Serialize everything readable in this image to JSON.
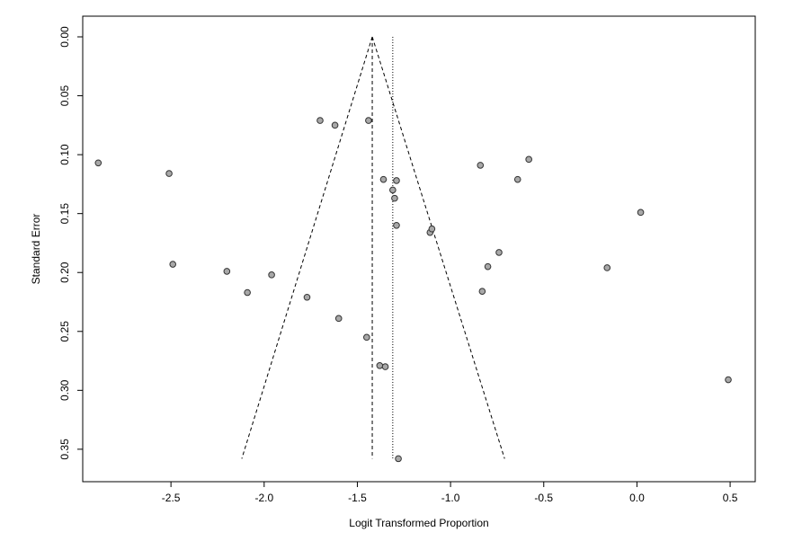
{
  "chart_data": {
    "type": "scatter",
    "title": "",
    "xlabel": "Logit Transformed Proportion",
    "ylabel": "Standard Error",
    "xlim": [
      -2.93,
      0.6
    ],
    "ylim": [
      0,
      0.36
    ],
    "y_reversed": true,
    "grid": false,
    "legend": "none",
    "x_ticks": [
      -2.5,
      -2.0,
      -1.5,
      -1.0,
      -0.5,
      0.0,
      0.5
    ],
    "x_tick_labels": [
      "-2.5",
      "-2.0",
      "-1.5",
      "-1.0",
      "-0.5",
      "0.0",
      "0.5"
    ],
    "y_ticks": [
      0.0,
      0.05,
      0.1,
      0.15,
      0.2,
      0.25,
      0.3,
      0.35
    ],
    "y_tick_labels": [
      "0.00",
      "0.05",
      "0.10",
      "0.15",
      "0.20",
      "0.25",
      "0.30",
      "0.35"
    ],
    "pooled_estimate_fixed": -1.42,
    "pooled_estimate_random": -1.31,
    "funnel_bottom_se": 0.358,
    "funnel_left_bottom_x": -2.12,
    "funnel_right_bottom_x": -0.71,
    "point_fill": "#a8a8a8",
    "point_stroke": "#333333",
    "points": [
      {
        "x": -2.89,
        "y": 0.107
      },
      {
        "x": -2.51,
        "y": 0.116
      },
      {
        "x": -2.49,
        "y": 0.193
      },
      {
        "x": -2.2,
        "y": 0.199
      },
      {
        "x": -2.09,
        "y": 0.217
      },
      {
        "x": -1.96,
        "y": 0.202
      },
      {
        "x": -1.77,
        "y": 0.221
      },
      {
        "x": -1.7,
        "y": 0.071
      },
      {
        "x": -1.62,
        "y": 0.075
      },
      {
        "x": -1.6,
        "y": 0.239
      },
      {
        "x": -1.44,
        "y": 0.071
      },
      {
        "x": -1.45,
        "y": 0.255
      },
      {
        "x": -1.38,
        "y": 0.279
      },
      {
        "x": -1.35,
        "y": 0.28
      },
      {
        "x": -1.36,
        "y": 0.121
      },
      {
        "x": -1.31,
        "y": 0.13
      },
      {
        "x": -1.3,
        "y": 0.137
      },
      {
        "x": -1.29,
        "y": 0.122
      },
      {
        "x": -1.29,
        "y": 0.16
      },
      {
        "x": -1.28,
        "y": 0.358
      },
      {
        "x": -1.11,
        "y": 0.166
      },
      {
        "x": -1.1,
        "y": 0.163
      },
      {
        "x": -0.84,
        "y": 0.109
      },
      {
        "x": -0.83,
        "y": 0.216
      },
      {
        "x": -0.8,
        "y": 0.195
      },
      {
        "x": -0.74,
        "y": 0.183
      },
      {
        "x": -0.64,
        "y": 0.121
      },
      {
        "x": -0.58,
        "y": 0.104
      },
      {
        "x": -0.16,
        "y": 0.196
      },
      {
        "x": 0.02,
        "y": 0.149
      },
      {
        "x": 0.49,
        "y": 0.291
      }
    ]
  }
}
